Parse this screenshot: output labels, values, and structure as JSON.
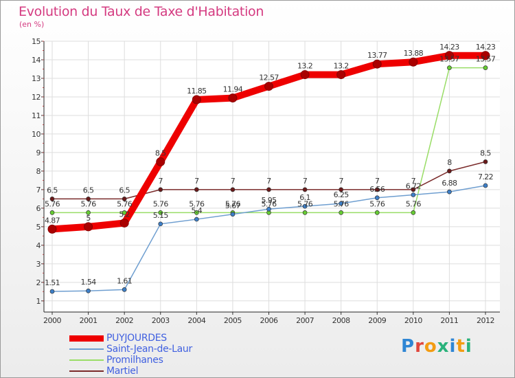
{
  "title": "Evolution du Taux de Taxe d'Habitation",
  "subtitle": "(en %)",
  "logo_text": "Proxiti",
  "chart_data": {
    "type": "line",
    "title": "Evolution du Taux de Taxe d'Habitation",
    "ylabel": "(en %)",
    "xlabel": "",
    "ylim": [
      1,
      15
    ],
    "yticks": [
      1,
      2,
      3,
      4,
      5,
      6,
      7,
      8,
      9,
      10,
      11,
      12,
      13,
      14,
      15
    ],
    "grid": true,
    "legend": "bottom-left",
    "x": [
      "2000",
      "2001",
      "2002",
      "2003",
      "2004",
      "2005",
      "2006",
      "2007",
      "2008",
      "2009",
      "2010",
      "2011",
      "2012"
    ],
    "series": [
      {
        "name": "PUYJOURDES",
        "color": "#ee0000",
        "marker": "#aa0000",
        "width": "thick",
        "values": [
          4.87,
          5,
          5.2,
          8.5,
          11.85,
          11.94,
          12.57,
          13.2,
          13.2,
          13.77,
          13.88,
          14.23,
          14.23
        ],
        "labels": [
          "4.87",
          "5",
          "5.2",
          "8.5",
          "11.85",
          "11.94",
          "12.57",
          "13.2",
          "13.2",
          "13.77",
          "13.88",
          "14.23",
          "14.23"
        ]
      },
      {
        "name": "Saint-Jean-de-Laur",
        "color": "#6e9ed0",
        "marker": "#3d7fc8",
        "width": "thin",
        "values": [
          1.51,
          1.54,
          1.61,
          5.15,
          5.4,
          5.67,
          5.95,
          6.1,
          6.25,
          6.56,
          6.72,
          6.88,
          7.22
        ],
        "labels": [
          "1.51",
          "1.54",
          "1.61",
          "5.15",
          "5.4",
          "5.67",
          "5.95",
          "6.1",
          "6.25",
          "6.56",
          "6.72",
          "6.88",
          "7.22"
        ]
      },
      {
        "name": "Promilhanes",
        "color": "#99dd66",
        "marker": "#66cc33",
        "width": "thin",
        "values": [
          5.76,
          5.76,
          5.76,
          5.76,
          5.76,
          5.76,
          5.76,
          5.76,
          5.76,
          5.76,
          5.76,
          13.57,
          13.57
        ],
        "labels": [
          "5.76",
          "5.76",
          "5.76",
          "5.76",
          "5.76",
          "5.76",
          "5.76",
          "5.76",
          "5.76",
          "5.76",
          "5.76",
          "13.57",
          "13.57"
        ]
      },
      {
        "name": "Martiel",
        "color": "#7a2a2a",
        "marker": "#6a1a1a",
        "width": "thin",
        "values": [
          6.5,
          6.5,
          6.5,
          7,
          7,
          7,
          7,
          7,
          7,
          7,
          7,
          8,
          8.5
        ],
        "labels": [
          "6.5",
          "6.5",
          "6.5",
          "7",
          "7",
          "7",
          "7",
          "7",
          "7",
          "7",
          "7",
          "8",
          "8.5"
        ]
      }
    ]
  }
}
